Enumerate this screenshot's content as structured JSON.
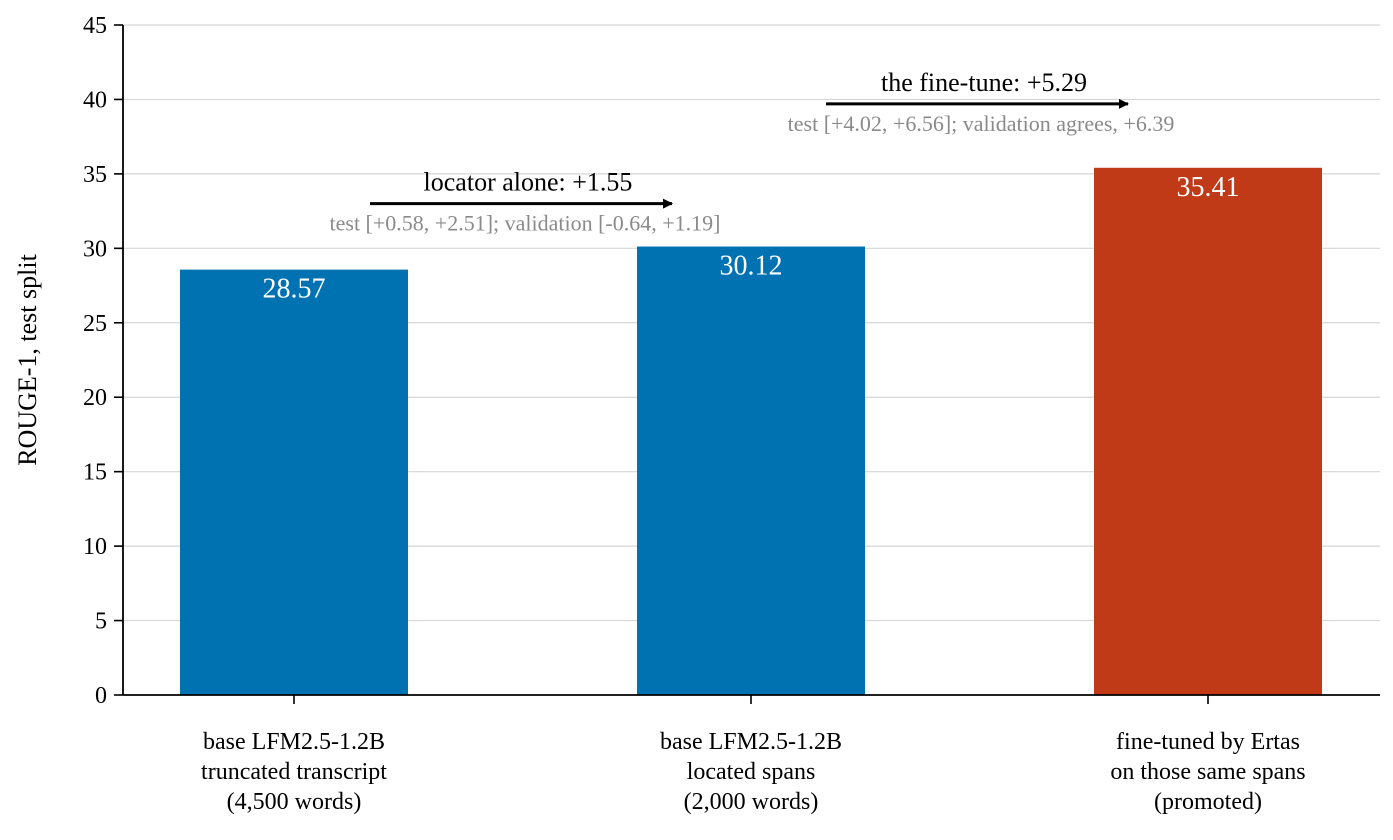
{
  "chart_data": {
    "type": "bar",
    "ylabel": "ROUGE-1, test split",
    "ylim": [
      0,
      45
    ],
    "yticks": [
      0,
      5,
      10,
      15,
      20,
      25,
      30,
      35,
      40,
      45
    ],
    "grid": true,
    "categories": [
      [
        "base LFM2.5-1.2B",
        "truncated transcript",
        "(4,500 words)"
      ],
      [
        "base LFM2.5-1.2B",
        "located spans",
        "(2,000 words)"
      ],
      [
        "fine-tuned by Ertas",
        "on those same spans",
        "(promoted)"
      ]
    ],
    "values": [
      28.57,
      30.12,
      35.41
    ],
    "value_labels": [
      "28.57",
      "30.12",
      "35.41"
    ],
    "colors": [
      "#0072b2",
      "#0072b2",
      "#c03a18"
    ],
    "annotations": [
      {
        "title": "locator alone: +1.55",
        "subtitle": "test [+0.58, +2.51]; validation [-0.64, +1.19]",
        "from_category": 0,
        "to_category": 1,
        "arrow_y": 33.0
      },
      {
        "title": "the fine-tune: +5.29",
        "subtitle": "test [+4.02, +6.56]; validation agrees, +6.39",
        "from_category": 1,
        "to_category": 2,
        "arrow_y": 39.7
      }
    ]
  }
}
